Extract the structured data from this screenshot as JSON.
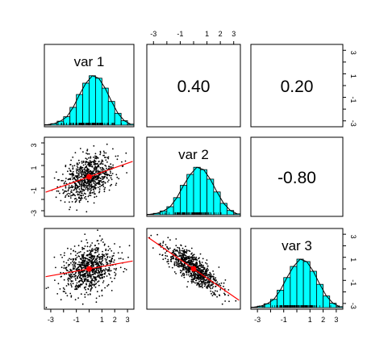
{
  "chart_data": {
    "type": "pairs",
    "variables": [
      "var 1",
      "var 2",
      "var 3"
    ],
    "correlations": [
      {
        "row": 1,
        "col": 2,
        "label": "0.40",
        "value": 0.4
      },
      {
        "row": 1,
        "col": 3,
        "label": "0.20",
        "value": 0.2
      },
      {
        "row": 2,
        "col": 3,
        "label": "-0.80",
        "value": -0.8
      }
    ],
    "axis_range": [
      -3.5,
      3.5
    ],
    "ticks": [
      -3,
      -2,
      -1,
      0,
      1,
      2,
      3
    ],
    "tick_labels": {
      "-3": "-3",
      "-2": "",
      "-1": "-1",
      "0": "",
      "1": "1",
      "2": "2",
      "3": "3"
    },
    "right_tick_labels": {
      "-3": "-3",
      "-2": "",
      "-1": "-1",
      "0": "",
      "1": "1",
      "2": "",
      "3": "3"
    },
    "histogram": {
      "bin_edges": [
        -3.5,
        -3,
        -2.5,
        -2,
        -1.5,
        -1,
        -0.5,
        0,
        0.5,
        1,
        1.5,
        2,
        2.5,
        3,
        3.5
      ],
      "relative_heights": [
        0.01,
        0.03,
        0.08,
        0.17,
        0.36,
        0.62,
        0.85,
        1.0,
        0.95,
        0.75,
        0.48,
        0.24,
        0.09,
        0.02
      ],
      "fill_color": "#00ffff"
    },
    "scatter": {
      "n_points": 1600,
      "point_color": "#000000",
      "smoother_color": "#ff0000",
      "slopes": {
        "1-2": 0.4,
        "1-3": 0.2,
        "2-3": -0.8
      }
    }
  }
}
